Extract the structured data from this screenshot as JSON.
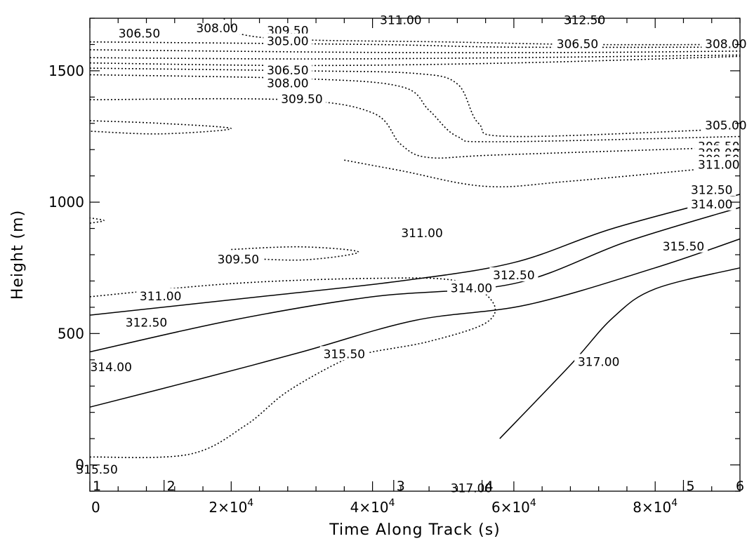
{
  "chart_data": {
    "type": "contour",
    "xlabel": "Time Along Track (s)",
    "ylabel": "Height (m)",
    "xlim": [
      0,
      92000
    ],
    "ylim": [
      -100,
      1700
    ],
    "x_ticks": [
      {
        "value": 0,
        "label": "0",
        "exp": ""
      },
      {
        "value": 20000,
        "label": "2×10",
        "exp": "4"
      },
      {
        "value": 40000,
        "label": "4×10",
        "exp": "4"
      },
      {
        "value": 60000,
        "label": "6×10",
        "exp": "4"
      },
      {
        "value": 80000,
        "label": "8×10",
        "exp": "4"
      }
    ],
    "y_ticks": [
      {
        "value": 0,
        "label": "0"
      },
      {
        "value": 500,
        "label": "500"
      },
      {
        "value": 1000,
        "label": "1000"
      },
      {
        "value": 1500,
        "label": "1500"
      }
    ],
    "segment_markers": [
      {
        "x": 0,
        "label": "1"
      },
      {
        "x": 10500,
        "label": "2"
      },
      {
        "x": 43000,
        "label": "3"
      },
      {
        "x": 55500,
        "label": "4"
      },
      {
        "x": 84000,
        "label": "5"
      },
      {
        "x": 92000,
        "label": "6"
      }
    ],
    "contour_levels": [
      305.0,
      306.5,
      308.0,
      309.5,
      311.0,
      312.5,
      314.0,
      315.5,
      317.0
    ],
    "contours": [
      {
        "level": 305.0,
        "style": "dotted",
        "points": [
          [
            19000,
            1700
          ],
          [
            20000,
            1650
          ],
          [
            28000,
            1620
          ],
          [
            50000,
            1610
          ],
          [
            70000,
            1600
          ],
          [
            92000,
            1600
          ]
        ]
      },
      {
        "level": 306.5,
        "style": "dotted",
        "points": [
          [
            0,
            1610
          ],
          [
            40000,
            1600
          ],
          [
            60000,
            1590
          ],
          [
            92000,
            1590
          ]
        ]
      },
      {
        "level": 308.0,
        "style": "dotted",
        "points": [
          [
            0,
            1580
          ],
          [
            40000,
            1570
          ],
          [
            70000,
            1570
          ],
          [
            92000,
            1575
          ]
        ]
      },
      {
        "level": 309.5,
        "style": "dotted",
        "points": [
          [
            0,
            1550
          ],
          [
            30000,
            1545
          ],
          [
            60000,
            1550
          ],
          [
            92000,
            1560
          ]
        ]
      },
      {
        "level": 311.0,
        "style": "dotted",
        "points": [
          [
            0,
            1530
          ],
          [
            30000,
            1520
          ],
          [
            60000,
            1530
          ],
          [
            92000,
            1555
          ]
        ]
      },
      {
        "level": 306.5,
        "style": "dotted",
        "points": [
          [
            0,
            1510
          ],
          [
            30000,
            1500
          ],
          [
            46000,
            1490
          ],
          [
            52000,
            1450
          ],
          [
            55000,
            1300
          ],
          [
            60000,
            1250
          ],
          [
            92000,
            1280
          ]
        ]
      },
      {
        "level": 308.0,
        "style": "dotted",
        "points": [
          [
            0,
            1485
          ],
          [
            30000,
            1470
          ],
          [
            44000,
            1440
          ],
          [
            48000,
            1350
          ],
          [
            52000,
            1250
          ],
          [
            58000,
            1230
          ],
          [
            92000,
            1250
          ]
        ]
      },
      {
        "level": 309.5,
        "style": "dotted",
        "points": [
          [
            0,
            1390
          ],
          [
            28000,
            1390
          ],
          [
            40000,
            1340
          ],
          [
            44000,
            1220
          ],
          [
            48000,
            1170
          ],
          [
            58000,
            1180
          ],
          [
            92000,
            1210
          ]
        ]
      },
      {
        "level": 311.0,
        "style": "dotted",
        "points": [
          [
            36000,
            1160
          ],
          [
            44000,
            1120
          ],
          [
            56000,
            1060
          ],
          [
            68000,
            1080
          ],
          [
            92000,
            1140
          ]
        ]
      },
      {
        "level": 312.5,
        "style": "dotted",
        "points": [
          [
            0,
            1310
          ],
          [
            10000,
            1300
          ],
          [
            20000,
            1280
          ],
          [
            10000,
            1260
          ],
          [
            0,
            1270
          ]
        ]
      },
      {
        "level": 311.0,
        "style": "dotted",
        "points": [
          [
            0,
            920
          ],
          [
            2000,
            930
          ],
          [
            0,
            940
          ]
        ]
      },
      {
        "level": 309.5,
        "style": "dotted",
        "points": [
          [
            20000,
            820
          ],
          [
            30000,
            830
          ],
          [
            38000,
            810
          ],
          [
            30000,
            780
          ],
          [
            20000,
            790
          ]
        ]
      },
      {
        "level": 311.0,
        "style": "dotted",
        "points": [
          [
            0,
            640
          ],
          [
            20000,
            690
          ],
          [
            40000,
            710
          ],
          [
            52000,
            700
          ],
          [
            57000,
            620
          ],
          [
            56000,
            540
          ],
          [
            48000,
            470
          ],
          [
            40000,
            430
          ],
          [
            36000,
            400
          ],
          [
            28000,
            280
          ],
          [
            22000,
            150
          ],
          [
            14000,
            40
          ],
          [
            0,
            30
          ]
        ]
      },
      {
        "level": 312.5,
        "style": "solid",
        "points": [
          [
            0,
            570
          ],
          [
            24000,
            640
          ],
          [
            44000,
            700
          ],
          [
            60000,
            770
          ],
          [
            74000,
            900
          ],
          [
            92000,
            1030
          ]
        ]
      },
      {
        "level": 314.0,
        "style": "solid",
        "points": [
          [
            0,
            430
          ],
          [
            20000,
            550
          ],
          [
            40000,
            640
          ],
          [
            60000,
            690
          ],
          [
            76000,
            850
          ],
          [
            92000,
            980
          ]
        ]
      },
      {
        "level": 315.5,
        "style": "solid",
        "points": [
          [
            0,
            220
          ],
          [
            16000,
            330
          ],
          [
            30000,
            430
          ],
          [
            46000,
            550
          ],
          [
            62000,
            610
          ],
          [
            80000,
            750
          ],
          [
            92000,
            860
          ]
        ]
      },
      {
        "level": 317.0,
        "style": "solid",
        "points": [
          [
            58000,
            100
          ],
          [
            68000,
            380
          ],
          [
            74000,
            560
          ],
          [
            80000,
            670
          ],
          [
            92000,
            750
          ]
        ]
      }
    ],
    "contour_labels": [
      {
        "text": "306.50",
        "x": 7000,
        "y": 1640
      },
      {
        "text": "308.00",
        "x": 18000,
        "y": 1660
      },
      {
        "text": "309.50",
        "x": 28000,
        "y": 1650
      },
      {
        "text": "311.00",
        "x": 44000,
        "y": 1690
      },
      {
        "text": "312.50",
        "x": 70000,
        "y": 1690
      },
      {
        "text": "305.00",
        "x": 28000,
        "y": 1610
      },
      {
        "text": "306.50",
        "x": 69000,
        "y": 1600
      },
      {
        "text": "308.00",
        "x": 90000,
        "y": 1600
      },
      {
        "text": "306.50",
        "x": 28000,
        "y": 1500
      },
      {
        "text": "308.00",
        "x": 28000,
        "y": 1450
      },
      {
        "text": "309.50",
        "x": 30000,
        "y": 1390
      },
      {
        "text": "305.00",
        "x": 90000,
        "y": 1290
      },
      {
        "text": "306.50",
        "x": 89000,
        "y": 1210
      },
      {
        "text": "308.00",
        "x": 89000,
        "y": 1185
      },
      {
        "text": "309.50",
        "x": 89000,
        "y": 1160
      },
      {
        "text": "311.00",
        "x": 89000,
        "y": 1140
      },
      {
        "text": "312.50",
        "x": 88000,
        "y": 1045
      },
      {
        "text": "314.00",
        "x": 88000,
        "y": 990
      },
      {
        "text": "311.00",
        "x": 47000,
        "y": 880
      },
      {
        "text": "309.50",
        "x": 21000,
        "y": 780
      },
      {
        "text": "315.50",
        "x": 84000,
        "y": 830
      },
      {
        "text": "312.50",
        "x": 60000,
        "y": 720
      },
      {
        "text": "314.00",
        "x": 54000,
        "y": 670
      },
      {
        "text": "311.00",
        "x": 10000,
        "y": 640
      },
      {
        "text": "312.50",
        "x": 8000,
        "y": 540
      },
      {
        "text": "314.00",
        "x": 3000,
        "y": 370
      },
      {
        "text": "315.50",
        "x": 36000,
        "y": 420
      },
      {
        "text": "317.00",
        "x": 72000,
        "y": 390
      },
      {
        "text": "315.50",
        "x": 1000,
        "y": -20
      },
      {
        "text": "317.00",
        "x": 54000,
        "y": -90
      }
    ]
  }
}
